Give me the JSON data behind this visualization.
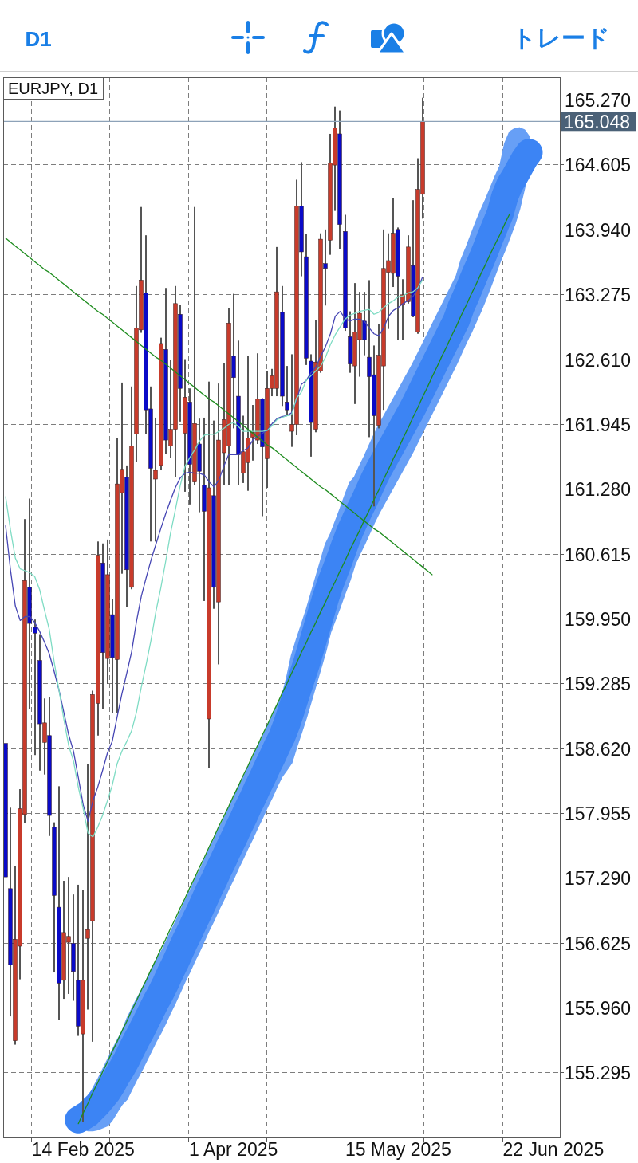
{
  "chart_data": {
    "type": "candlestick",
    "title": "EURJPY, D1",
    "annotations": [
      "D1",
      "トレード"
    ],
    "categories": [
      null,
      null,
      null,
      null,
      null,
      null,
      null,
      null,
      null,
      null,
      null,
      null,
      null,
      null,
      null,
      null,
      "14 Feb 2025",
      null,
      null,
      null,
      null,
      null,
      null,
      null,
      null,
      null,
      null,
      null,
      null,
      null,
      null,
      null,
      null,
      null,
      null,
      null,
      null,
      null,
      null,
      null,
      null,
      null,
      null,
      null,
      null,
      null,
      null,
      "1 Apr 2025",
      null,
      null,
      null,
      null,
      null,
      null,
      null,
      null,
      null,
      null,
      null,
      null,
      null,
      null,
      null,
      null,
      null,
      null,
      null,
      null,
      null,
      null,
      null,
      null,
      null,
      null,
      null,
      null,
      null,
      null,
      null,
      null,
      null,
      "15 May 2025",
      null,
      null,
      null,
      null,
      null,
      null,
      null,
      null,
      null,
      null,
      null,
      null,
      null,
      null,
      null,
      null,
      null,
      null,
      null,
      null,
      null,
      null,
      null,
      null,
      null,
      null,
      null,
      null,
      null,
      null,
      null,
      "22 Jun 2025",
      null
    ],
    "ohlc": [
      [
        158.67,
        158.67,
        157.3,
        157.3
      ],
      [
        157.18,
        158.01,
        155.87,
        156.4
      ],
      [
        155.62,
        157.41,
        155.58,
        156.66
      ],
      [
        156.59,
        158.2,
        156.25,
        158.0
      ],
      [
        157.94,
        160.97,
        157.85,
        160.34
      ],
      [
        160.27,
        161.18,
        159.02,
        159.9
      ],
      [
        159.86,
        159.94,
        158.55,
        159.8
      ],
      [
        159.52,
        159.79,
        158.39,
        158.87
      ],
      [
        158.68,
        159.13,
        158.35,
        158.88
      ],
      [
        158.75,
        159.14,
        157.72,
        157.93
      ],
      [
        157.81,
        157.86,
        156.32,
        157.11
      ],
      [
        156.99,
        158.23,
        155.83,
        156.21
      ],
      [
        156.24,
        157.26,
        156.05,
        156.73
      ],
      [
        156.63,
        157.3,
        156.1,
        156.69
      ],
      [
        156.62,
        157.12,
        156.03,
        156.33
      ],
      [
        156.24,
        157.22,
        155.67,
        155.77
      ],
      [
        155.69,
        157.17,
        154.79,
        156.24
      ],
      [
        156.67,
        158.46,
        155.94,
        156.76
      ],
      [
        156.85,
        159.21,
        155.61,
        159.17
      ],
      [
        159.08,
        160.74,
        158.75,
        160.6
      ],
      [
        160.52,
        160.72,
        159.02,
        159.6
      ],
      [
        159.54,
        160.76,
        159.28,
        160.4
      ],
      [
        159.99,
        160.15,
        158.98,
        159.55
      ],
      [
        159.53,
        161.8,
        158.98,
        161.33
      ],
      [
        161.24,
        162.37,
        160.41,
        161.48
      ],
      [
        161.4,
        161.52,
        160.07,
        160.45
      ],
      [
        160.27,
        162.33,
        160.25,
        161.72
      ],
      [
        161.84,
        163.36,
        161.56,
        162.93
      ],
      [
        162.91,
        164.17,
        162.88,
        163.42
      ],
      [
        163.29,
        163.88,
        161.84,
        162.09
      ],
      [
        162.1,
        162.33,
        160.74,
        161.49
      ],
      [
        161.38,
        162.01,
        160.74,
        161.47
      ],
      [
        161.52,
        162.83,
        161.47,
        162.77
      ],
      [
        162.71,
        163.34,
        161.64,
        161.78
      ],
      [
        161.72,
        162.6,
        161.6,
        161.89
      ],
      [
        161.89,
        163.36,
        161.4,
        163.18
      ],
      [
        163.07,
        163.17,
        161.97,
        162.31
      ],
      [
        161.85,
        162.61,
        161.25,
        162.22
      ],
      [
        162.17,
        162.31,
        161.12,
        161.53
      ],
      [
        161.35,
        164.17,
        161.32,
        161.95
      ],
      [
        161.74,
        162.0,
        161.04,
        161.46
      ],
      [
        161.32,
        162.01,
        160.13,
        161.05
      ],
      [
        158.92,
        162.38,
        158.42,
        161.29
      ],
      [
        161.21,
        161.98,
        160.05,
        160.27
      ],
      [
        160.12,
        162.36,
        159.48,
        161.78
      ],
      [
        161.65,
        162.57,
        161.32,
        161.99
      ],
      [
        161.72,
        163.13,
        161.32,
        162.98
      ],
      [
        162.64,
        163.28,
        161.9,
        162.42
      ],
      [
        162.23,
        162.8,
        161.32,
        161.63
      ],
      [
        161.44,
        162.03,
        161.34,
        161.66
      ],
      [
        161.55,
        162.64,
        161.26,
        161.8
      ],
      [
        161.81,
        162.14,
        161.57,
        161.86
      ],
      [
        161.78,
        162.67,
        161.74,
        162.2
      ],
      [
        162.2,
        162.21,
        161.0,
        161.71
      ],
      [
        161.59,
        162.49,
        161.29,
        162.31
      ],
      [
        162.31,
        162.51,
        162.23,
        162.44
      ],
      [
        162.31,
        163.76,
        162.23,
        163.3
      ],
      [
        163.09,
        163.36,
        162.13,
        162.23
      ],
      [
        162.17,
        162.54,
        162.03,
        162.09
      ],
      [
        161.87,
        162.66,
        161.71,
        161.94
      ],
      [
        161.94,
        164.45,
        161.83,
        164.18
      ],
      [
        164.18,
        164.63,
        163.46,
        163.71
      ],
      [
        163.66,
        163.89,
        162.55,
        162.62
      ],
      [
        162.59,
        162.66,
        161.61,
        161.96
      ],
      [
        161.89,
        163.01,
        161.86,
        162.58
      ],
      [
        162.49,
        163.9,
        162.47,
        163.84
      ],
      [
        163.59,
        163.94,
        163.16,
        163.54
      ],
      [
        163.83,
        164.92,
        163.68,
        164.62
      ],
      [
        164.6,
        165.2,
        164.13,
        164.98
      ],
      [
        164.92,
        165.16,
        163.74,
        163.99
      ],
      [
        163.92,
        164.09,
        162.9,
        162.93
      ],
      [
        162.84,
        163.1,
        162.47,
        162.56
      ],
      [
        162.54,
        163.39,
        162.15,
        162.89
      ],
      [
        162.81,
        163.3,
        162.43,
        163.08
      ],
      [
        163.0,
        163.3,
        162.65,
        162.81
      ],
      [
        162.63,
        163.42,
        161.81,
        162.43
      ],
      [
        162.45,
        162.75,
        161.1,
        162.03
      ],
      [
        161.93,
        162.97,
        161.9,
        162.65
      ],
      [
        162.54,
        163.94,
        162.09,
        163.54
      ],
      [
        163.5,
        163.9,
        162.92,
        163.62
      ],
      [
        163.49,
        164.26,
        163.35,
        163.9
      ],
      [
        163.94,
        163.96,
        162.81,
        163.46
      ],
      [
        163.17,
        163.43,
        162.81,
        163.27
      ],
      [
        163.2,
        163.88,
        163.18,
        163.76
      ],
      [
        163.57,
        164.24,
        163.04,
        163.05
      ],
      [
        162.89,
        164.67,
        162.87,
        164.35
      ],
      [
        164.3,
        165.29,
        164.05,
        165.048
      ],
      null,
      null,
      null,
      null,
      null,
      null,
      null,
      null,
      null,
      null,
      null,
      null,
      null,
      null,
      null,
      null,
      null,
      null,
      null,
      null,
      null,
      null,
      null,
      null,
      null,
      null,
      null,
      null
    ],
    "colors": [
      "#0a0ac8",
      "#0a0ac8",
      "#c83b2b",
      "#c83b2b",
      "#c83b2b",
      "#0a0ac8",
      "#0a0ac8",
      "#0a0ac8",
      "#c83b2b",
      "#0a0ac8",
      "#0a0ac8",
      "#0a0ac8",
      "#c83b2b",
      "#c83b2b",
      "#0a0ac8",
      "#0a0ac8",
      "#c83b2b",
      "#c83b2b",
      "#c83b2b",
      "#c83b2b",
      "#0a0ac8",
      "#c83b2b",
      "#0a0ac8",
      "#c83b2b",
      "#c83b2b",
      "#0a0ac8",
      "#c83b2b",
      "#c83b2b",
      "#c83b2b",
      "#0a0ac8",
      "#0a0ac8",
      "#c83b2b",
      "#c83b2b",
      "#0a0ac8",
      "#c83b2b",
      "#c83b2b",
      "#0a0ac8",
      "#c83b2b",
      "#0a0ac8",
      "#c83b2b",
      "#0a0ac8",
      "#0a0ac8",
      "#c83b2b",
      "#0a0ac8",
      "#c83b2b",
      "#c83b2b",
      "#c83b2b",
      "#0a0ac8",
      "#0a0ac8",
      "#c83b2b",
      "#c83b2b",
      "#c83b2b",
      "#c83b2b",
      "#0a0ac8",
      "#c83b2b",
      "#c83b2b",
      "#c83b2b",
      "#0a0ac8",
      "#0a0ac8",
      "#c83b2b",
      "#c83b2b",
      "#0a0ac8",
      "#0a0ac8",
      "#0a0ac8",
      "#c83b2b",
      "#c83b2b",
      "#0a0ac8",
      "#c83b2b",
      "#c83b2b",
      "#0a0ac8",
      "#0a0ac8",
      "#0a0ac8",
      "#c83b2b",
      "#c83b2b",
      "#0a0ac8",
      "#0a0ac8",
      "#0a0ac8",
      "#c83b2b",
      "#c83b2b",
      "#c83b2b",
      "#c83b2b",
      "#0a0ac8",
      "#c83b2b",
      "#c83b2b",
      "#0a0ac8",
      "#c83b2b",
      "#c83b2b",
      null,
      null,
      null,
      null,
      null,
      null,
      null,
      null,
      null,
      null,
      null,
      null,
      null,
      null,
      null,
      null,
      null,
      null,
      null,
      null,
      null,
      null,
      null,
      null,
      null,
      null,
      null,
      null
    ],
    "series": [
      {
        "type": "line",
        "color": "#3c84f4",
        "values": [
          null,
          null,
          null,
          null,
          null,
          null,
          null,
          null,
          null,
          null,
          null,
          null,
          null,
          null,
          null,
          154.81,
          154.84,
          154.87,
          154.92,
          154.97,
          155.03,
          155.09,
          155.17,
          155.26,
          155.34,
          155.43,
          155.53,
          155.63,
          155.72,
          155.82,
          155.92,
          156.02,
          156.11,
          156.21,
          156.32,
          156.42,
          156.53,
          156.64,
          156.74,
          156.85,
          156.95,
          157.06,
          157.17,
          157.27,
          157.38,
          157.48,
          157.59,
          157.69,
          157.8,
          157.9,
          158.01,
          158.11,
          158.22,
          158.32,
          158.43,
          158.53,
          158.64,
          158.74,
          158.87,
          159.02,
          159.18,
          159.33,
          159.48,
          159.65,
          159.82,
          159.99,
          160.16,
          160.31,
          160.44,
          160.57,
          160.71,
          160.84,
          160.95,
          161.06,
          161.16,
          161.27,
          161.38,
          161.48,
          161.57,
          161.66,
          161.75,
          161.84,
          161.93,
          162.02,
          162.11,
          162.21,
          162.31,
          162.41,
          162.51,
          162.61,
          162.71,
          162.81,
          162.91,
          163.01,
          163.15,
          163.26,
          163.38,
          163.5,
          163.61,
          163.73,
          163.86,
          163.98,
          164.1,
          164.28,
          164.4,
          164.48,
          164.57,
          164.66,
          164.73,
          null,
          null,
          null,
          null,
          null,
          null
        ],
        "upper": [
          null,
          null,
          null,
          null,
          null,
          null,
          null,
          null,
          null,
          null,
          null,
          null,
          null,
          null,
          null,
          154.86,
          154.96,
          155.04,
          155.13,
          155.22,
          155.32,
          155.42,
          155.52,
          155.62,
          155.71,
          155.84,
          155.94,
          156.04,
          156.13,
          156.23,
          156.33,
          156.43,
          156.52,
          156.62,
          156.73,
          156.83,
          156.94,
          157.05,
          157.15,
          157.26,
          157.36,
          157.47,
          157.58,
          157.68,
          157.79,
          157.89,
          158.0,
          158.1,
          158.21,
          158.31,
          158.42,
          158.52,
          158.63,
          158.73,
          158.84,
          158.94,
          159.05,
          159.15,
          159.34,
          159.57,
          159.73,
          159.88,
          160.03,
          160.2,
          160.37,
          160.54,
          160.71,
          160.81,
          160.94,
          161.07,
          161.21,
          161.34,
          161.4,
          161.51,
          161.61,
          161.72,
          161.83,
          161.93,
          162.02,
          162.11,
          162.2,
          162.29,
          162.38,
          162.47,
          162.56,
          162.66,
          162.76,
          162.86,
          162.96,
          163.06,
          163.16,
          163.26,
          163.36,
          163.46,
          163.63,
          163.75,
          163.88,
          164.01,
          164.13,
          164.24,
          164.36,
          164.48,
          164.59,
          164.82,
          164.94,
          164.97,
          164.98,
          164.96,
          164.89,
          null,
          null,
          null,
          null,
          null,
          null
        ],
        "lower": [
          null,
          null,
          null,
          null,
          null,
          null,
          null,
          null,
          null,
          null,
          null,
          null,
          null,
          null,
          null,
          154.75,
          154.72,
          154.7,
          154.7,
          154.71,
          154.73,
          154.75,
          154.81,
          154.89,
          154.97,
          155.02,
          155.12,
          155.22,
          155.31,
          155.41,
          155.51,
          155.61,
          155.7,
          155.8,
          155.91,
          156.01,
          156.12,
          156.23,
          156.33,
          156.44,
          156.54,
          156.65,
          156.76,
          156.86,
          156.97,
          157.07,
          157.18,
          157.28,
          157.39,
          157.49,
          157.6,
          157.7,
          157.81,
          157.91,
          158.02,
          158.12,
          158.23,
          158.33,
          158.4,
          158.47,
          158.63,
          158.78,
          158.93,
          159.1,
          159.27,
          159.44,
          159.61,
          159.81,
          159.94,
          160.07,
          160.21,
          160.34,
          160.5,
          160.61,
          160.71,
          160.82,
          160.93,
          161.03,
          161.12,
          161.21,
          161.3,
          161.39,
          161.48,
          161.57,
          161.66,
          161.76,
          161.86,
          161.96,
          162.06,
          162.16,
          162.26,
          162.36,
          162.46,
          162.56,
          162.67,
          162.78,
          162.88,
          162.99,
          163.1,
          163.22,
          163.35,
          163.48,
          163.61,
          163.73,
          163.86,
          163.99,
          164.15,
          164.36,
          164.57,
          null,
          null,
          null,
          null,
          null,
          null
        ]
      },
      {
        "type": "line",
        "color": "#4646b4",
        "values": [
          160.9,
          160.45,
          160.08,
          159.93,
          159.97,
          159.97,
          159.91,
          159.82,
          159.71,
          159.59,
          159.41,
          159.22,
          158.99,
          158.76,
          158.59,
          158.32,
          158.04,
          157.87,
          158.08,
          158.22,
          158.39,
          158.57,
          158.69,
          158.94,
          159.18,
          159.39,
          159.61,
          159.92,
          160.18,
          160.37,
          160.55,
          160.71,
          160.87,
          161.02,
          161.16,
          161.29,
          161.39,
          161.44,
          161.45,
          161.44,
          161.44,
          161.42,
          161.35,
          161.3,
          161.37,
          161.51,
          161.63,
          161.63,
          161.63,
          161.67,
          161.7,
          161.78,
          161.82,
          161.85,
          161.88,
          161.95,
          162.0,
          162.02,
          162.03,
          162.06,
          162.19,
          162.35,
          162.39,
          162.47,
          162.53,
          162.64,
          162.74,
          162.87,
          163.05,
          163.1,
          163.03,
          163.0,
          163.02,
          163.02,
          163.0,
          162.93,
          162.87,
          162.85,
          162.93,
          163.05,
          163.11,
          163.14,
          163.18,
          163.21,
          163.25,
          163.33,
          163.45,
          null,
          null,
          null,
          null,
          null,
          null,
          null,
          null,
          null,
          null,
          null,
          null,
          null,
          null,
          null,
          null,
          null,
          null,
          null,
          null,
          null,
          null,
          null,
          null,
          null,
          null,
          null,
          null
        ]
      },
      {
        "type": "line",
        "color": "#7fdcc4",
        "values": [
          161.2,
          160.86,
          160.57,
          160.46,
          160.44,
          160.42,
          160.38,
          160.25,
          160.04,
          159.84,
          159.51,
          159.22,
          158.92,
          158.65,
          158.49,
          158.22,
          158.0,
          157.75,
          157.71,
          157.81,
          157.93,
          158.08,
          158.24,
          158.46,
          158.59,
          158.69,
          158.8,
          158.99,
          159.25,
          159.48,
          159.73,
          160.02,
          160.26,
          160.53,
          160.82,
          161.06,
          161.31,
          161.51,
          161.6,
          161.68,
          161.77,
          161.83,
          161.84,
          161.84,
          161.87,
          161.9,
          161.94,
          161.96,
          161.92,
          161.87,
          161.87,
          161.87,
          161.87,
          161.87,
          161.88,
          161.93,
          161.99,
          162.01,
          162.03,
          162.04,
          162.21,
          162.27,
          162.39,
          162.44,
          162.49,
          162.54,
          162.63,
          162.76,
          162.86,
          162.94,
          163.02,
          163.06,
          163.08,
          163.1,
          163.11,
          163.12,
          163.07,
          163.09,
          163.14,
          163.18,
          163.21,
          163.25,
          163.26,
          163.29,
          163.3,
          163.34,
          163.42,
          null,
          null,
          null,
          null,
          null,
          null,
          null,
          null,
          null,
          null,
          null,
          null,
          null,
          null,
          null,
          null,
          null,
          null,
          null,
          null,
          null,
          null,
          null,
          null,
          null,
          null,
          null,
          null
        ]
      },
      {
        "type": "line",
        "color": "#1e8c1e",
        "values": [
          163.85,
          163.81,
          163.77,
          163.73,
          163.69,
          163.65,
          163.61,
          163.57,
          163.53,
          163.5,
          163.46,
          163.42,
          163.38,
          163.34,
          163.3,
          163.26,
          163.22,
          163.18,
          163.14,
          163.1,
          163.07,
          163.03,
          162.99,
          162.95,
          162.91,
          162.87,
          162.83,
          162.79,
          162.75,
          162.71,
          162.67,
          162.63,
          162.6,
          162.56,
          162.52,
          162.48,
          162.44,
          162.4,
          162.36,
          162.32,
          162.28,
          162.24,
          162.2,
          162.17,
          162.13,
          162.09,
          162.05,
          162.01,
          161.97,
          161.93,
          161.89,
          161.85,
          161.81,
          161.77,
          161.73,
          161.7,
          161.66,
          161.62,
          161.58,
          161.54,
          161.5,
          161.46,
          161.42,
          161.38,
          161.34,
          161.3,
          161.27,
          161.23,
          161.19,
          161.15,
          161.11,
          161.07,
          161.03,
          160.99,
          160.95,
          160.91,
          160.87,
          160.84,
          160.8,
          160.76,
          160.72,
          160.68,
          160.64,
          160.6,
          160.56,
          160.52,
          160.48,
          160.44,
          160.4,
          null,
          null,
          null,
          null,
          null,
          null,
          null,
          null,
          null,
          null,
          null,
          null,
          null,
          null,
          null,
          null,
          null,
          null,
          null,
          null,
          null,
          null,
          null,
          null,
          null,
          null
        ]
      },
      {
        "type": "line",
        "color": "#1e8c1e",
        "values": [
          null,
          null,
          null,
          null,
          null,
          null,
          null,
          null,
          null,
          null,
          null,
          null,
          null,
          null,
          null,
          154.77,
          154.88,
          154.98,
          155.09,
          155.19,
          155.3,
          155.4,
          155.51,
          155.61,
          155.72,
          155.82,
          155.93,
          156.03,
          156.14,
          156.24,
          156.35,
          156.45,
          156.56,
          156.66,
          156.77,
          156.87,
          156.98,
          157.08,
          157.19,
          157.29,
          157.4,
          157.5,
          157.61,
          157.71,
          157.82,
          157.92,
          158.02,
          158.13,
          158.23,
          158.34,
          158.44,
          158.55,
          158.65,
          158.76,
          158.86,
          158.97,
          159.07,
          159.18,
          159.28,
          159.39,
          159.49,
          159.6,
          159.7,
          159.81,
          159.91,
          160.02,
          160.12,
          160.23,
          160.33,
          160.44,
          160.54,
          160.65,
          160.75,
          160.85,
          160.96,
          161.06,
          161.17,
          161.27,
          161.38,
          161.48,
          161.59,
          161.69,
          161.8,
          161.9,
          162.01,
          162.11,
          162.22,
          162.32,
          162.43,
          162.53,
          162.64,
          162.74,
          162.85,
          162.95,
          163.06,
          163.16,
          163.27,
          163.37,
          163.48,
          163.58,
          163.69,
          163.79,
          163.89,
          164.0,
          164.1,
          null,
          null,
          null,
          null,
          null,
          null,
          null,
          null,
          null,
          null
        ]
      }
    ],
    "ref_lines": [
      {
        "axis": "y",
        "value": 165.048,
        "label": "165.048",
        "color": "#8da2b8"
      }
    ],
    "ylim": [
      154.62,
      165.5
    ],
    "yticks": [
      155.295,
      {
        "value": 155.96,
        "label": "155.960"
      },
      156.625,
      {
        "value": 157.29,
        "label": "157.290"
      },
      157.955,
      {
        "value": 158.62,
        "label": "158.620"
      },
      159.285,
      {
        "value": 159.95,
        "label": "159.950"
      },
      160.615,
      {
        "value": 161.28,
        "label": "161.280"
      },
      161.945,
      {
        "value": 162.61,
        "label": "162.610"
      },
      163.275,
      {
        "value": 163.94,
        "label": "163.940"
      },
      164.605,
      {
        "value": 165.27,
        "label": "165.270"
      }
    ],
    "grid": true
  }
}
